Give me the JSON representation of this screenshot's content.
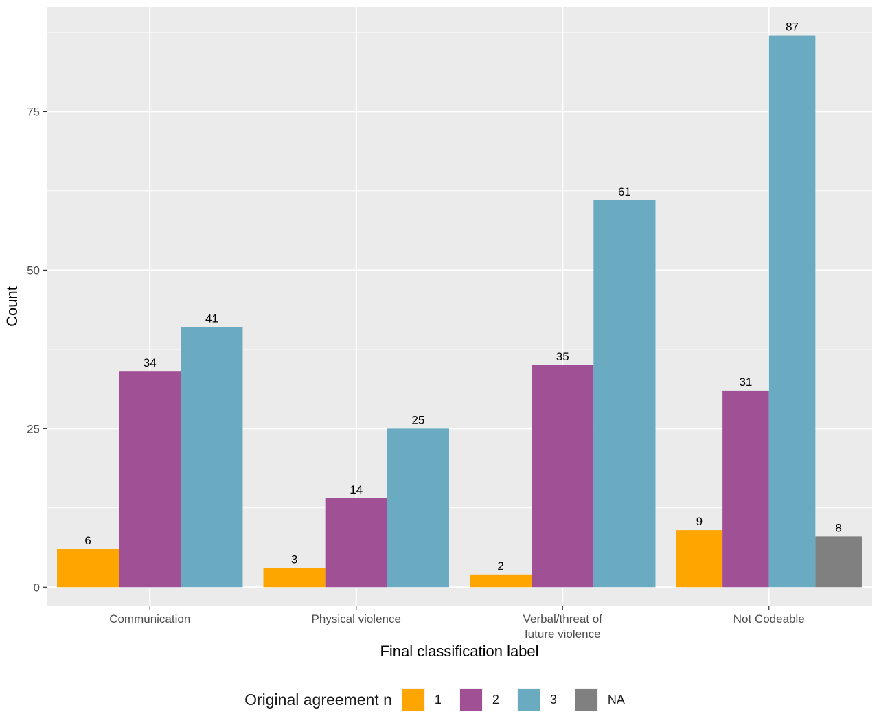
{
  "chart_data": {
    "type": "bar",
    "title": "",
    "xlabel": "Final classification label",
    "ylabel": "Count",
    "categories": [
      "Communication",
      "Physical violence",
      "Verbal/threat of future violence",
      "Not Codeable"
    ],
    "category_tick_lines": [
      [
        "Communication"
      ],
      [
        "Physical violence"
      ],
      [
        "Verbal/threat of",
        "future violence"
      ],
      [
        "Not Codeable"
      ]
    ],
    "series": [
      {
        "name": "1",
        "color": "#FFA500",
        "values": [
          6,
          3,
          2,
          9
        ]
      },
      {
        "name": "2",
        "color": "#A05195",
        "values": [
          34,
          14,
          35,
          31
        ]
      },
      {
        "name": "3",
        "color": "#6AABC1",
        "values": [
          41,
          25,
          61,
          87
        ]
      },
      {
        "name": "NA",
        "color": "#808080",
        "values": [
          null,
          null,
          null,
          8
        ]
      }
    ],
    "ylim": [
      -3,
      91.5
    ],
    "yticks": [
      0,
      25,
      50,
      75
    ],
    "grid": true,
    "panel_background": "#EBEBEB",
    "legend": {
      "title": "Original agreement n",
      "position": "bottom"
    }
  }
}
